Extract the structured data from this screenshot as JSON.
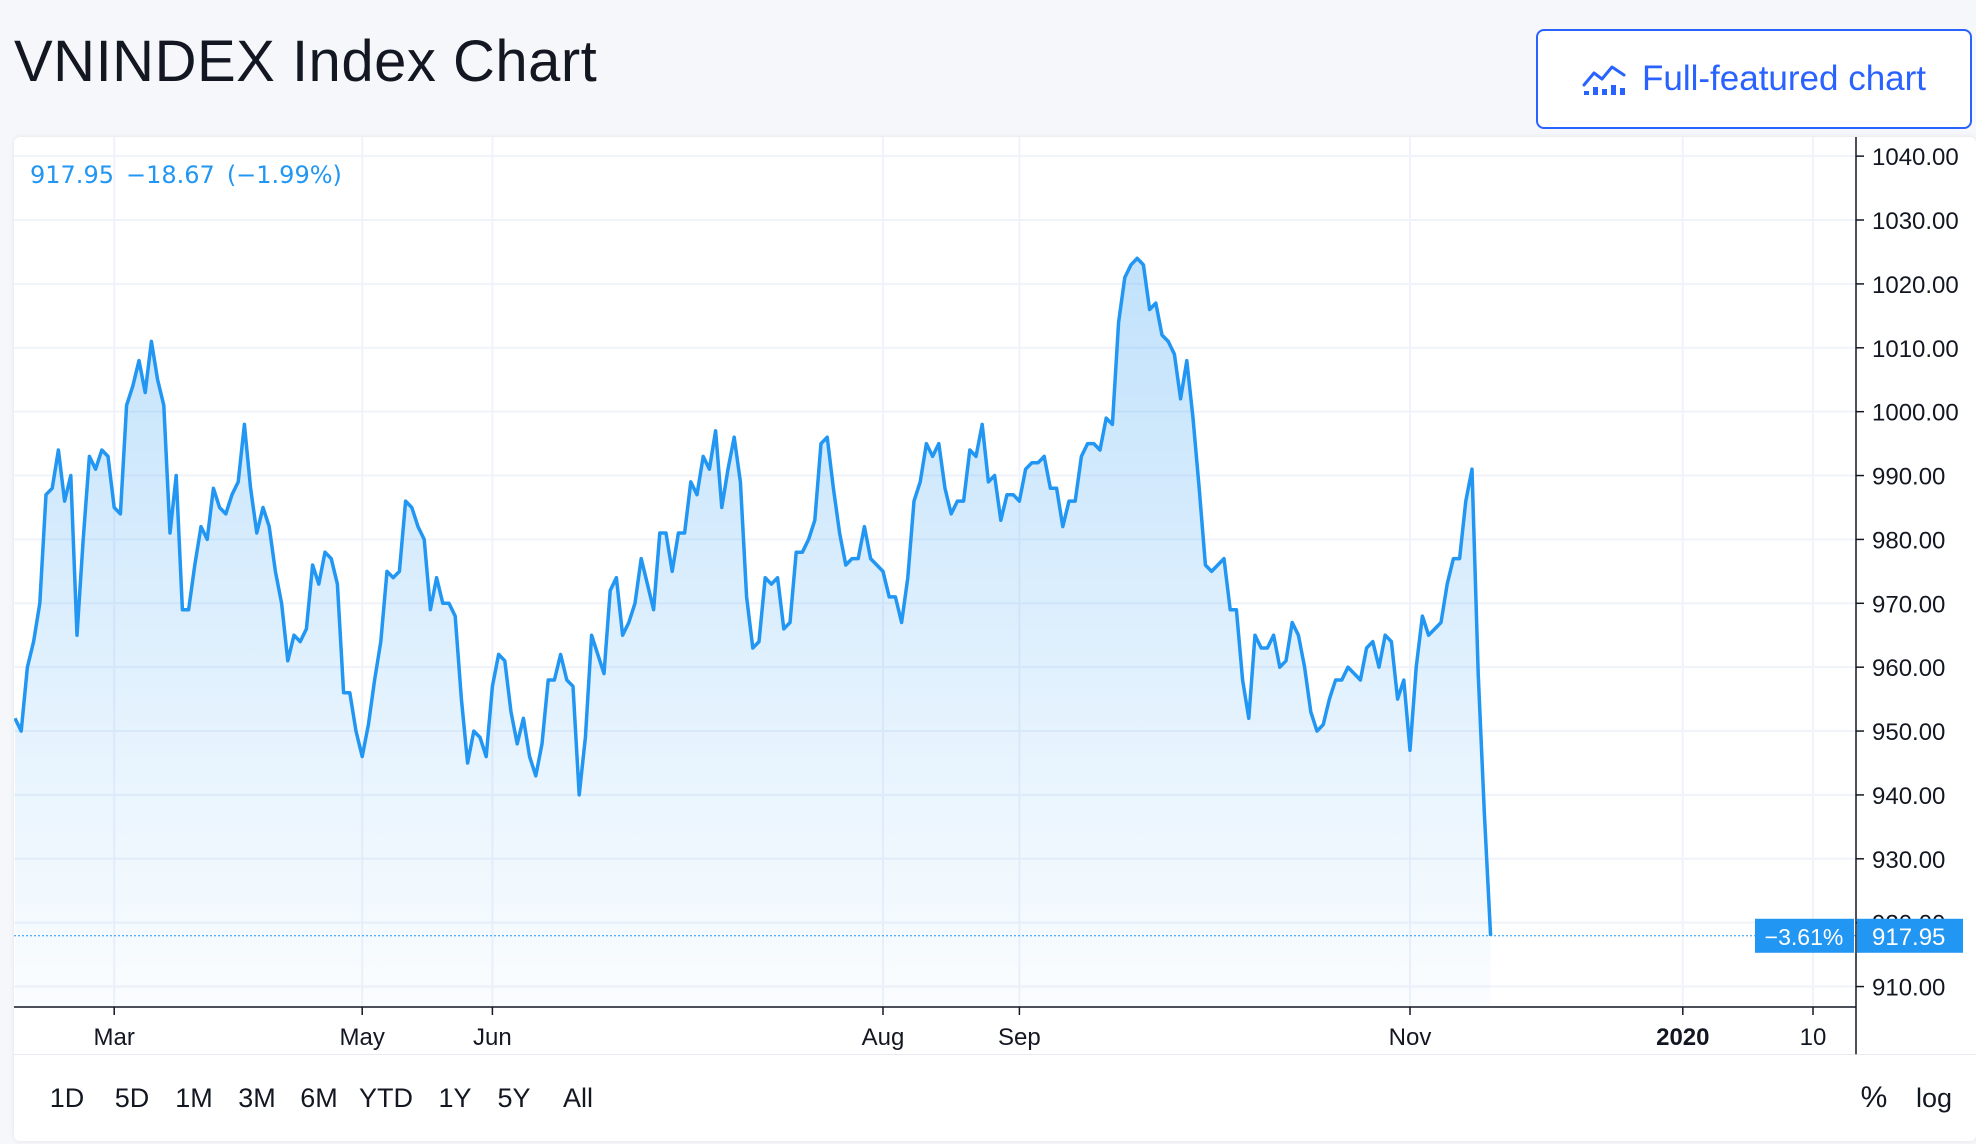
{
  "page": {
    "title": "VNINDEX Index Chart",
    "full_chart_button_label": "Full-featured chart"
  },
  "legend": {
    "price": "917.95",
    "change": "−18.67",
    "change_pct": "(−1.99%)"
  },
  "range_buttons": [
    "1D",
    "5D",
    "1M",
    "3M",
    "6M",
    "YTD",
    "1Y",
    "5Y",
    "All"
  ],
  "scale_buttons": {
    "percent": "%",
    "log": "log"
  },
  "colors": {
    "line": "#2196f3",
    "accent": "#2962ff",
    "price_tag": "#2196f3",
    "grid": "#f0f3fa",
    "text": "#131722"
  },
  "chart_data": {
    "type": "area",
    "series": [
      {
        "values": [
          952,
          950,
          960,
          964,
          970,
          987,
          988,
          994,
          986,
          990,
          965,
          980,
          993,
          991,
          994,
          993,
          985,
          984,
          1001,
          1004,
          1008,
          1003,
          1011,
          1005,
          1001,
          981,
          990,
          969,
          969,
          976,
          982,
          980,
          988,
          985,
          984,
          987,
          989,
          998,
          988,
          981,
          985,
          982,
          975,
          970,
          961,
          965,
          964,
          966,
          976,
          973,
          978,
          977,
          973,
          956,
          956,
          950,
          946,
          951,
          958,
          964,
          975,
          974,
          975,
          986,
          985,
          982,
          980,
          969,
          974,
          970,
          970,
          968,
          955,
          945,
          950,
          949,
          946,
          957,
          962,
          961,
          953,
          948,
          952,
          946,
          943,
          948,
          958,
          958,
          962,
          958,
          957,
          940,
          949,
          965,
          962,
          959,
          972,
          974,
          965,
          967,
          970,
          977,
          973,
          969,
          981,
          981,
          975,
          981,
          981,
          989,
          987,
          993,
          991,
          997,
          985,
          991,
          996,
          989,
          971,
          963,
          964,
          974,
          973,
          974,
          966,
          967,
          978,
          978,
          980,
          983,
          995,
          996,
          988,
          981,
          976,
          977,
          977,
          982,
          977,
          976,
          975,
          971,
          971,
          967,
          974,
          986,
          989,
          995,
          993,
          995,
          988,
          984,
          986,
          986,
          994,
          993,
          998,
          989,
          990,
          983,
          987,
          987,
          986,
          991,
          992,
          992,
          993,
          988,
          988,
          982,
          986,
          986,
          993,
          995,
          995,
          994,
          999,
          998,
          1014,
          1021,
          1023,
          1024,
          1023,
          1016,
          1017,
          1012,
          1011,
          1009,
          1002,
          1008,
          999,
          988,
          976,
          975,
          976,
          977,
          969,
          969,
          958,
          952,
          965,
          963,
          963,
          965,
          960,
          961,
          967,
          965,
          960,
          953,
          950,
          951,
          955,
          958,
          958,
          960,
          959,
          958,
          963,
          964,
          960,
          965,
          964,
          955,
          958,
          947,
          960,
          968,
          965,
          966,
          967,
          973,
          977,
          977,
          986,
          991,
          959,
          937,
          917.95
        ]
      }
    ],
    "x_tick_labels": [
      "Mar",
      "May",
      "Jun",
      "Aug",
      "Sep",
      "Nov",
      "2020",
      "10"
    ],
    "x_tick_positions": [
      16,
      56,
      77,
      140,
      162,
      225,
      269,
      290
    ],
    "y_tick_labels": [
      "1040.00",
      "1030.00",
      "1020.00",
      "1010.00",
      "1000.00",
      "990.00",
      "980.00",
      "970.00",
      "960.00",
      "950.00",
      "940.00",
      "930.00",
      "920.00",
      "910.00"
    ],
    "ylim": [
      906.8,
      1043
    ],
    "last_value": 917.95,
    "last_value_label": "917.95",
    "last_change_label": "−3.61%",
    "grid": true
  }
}
